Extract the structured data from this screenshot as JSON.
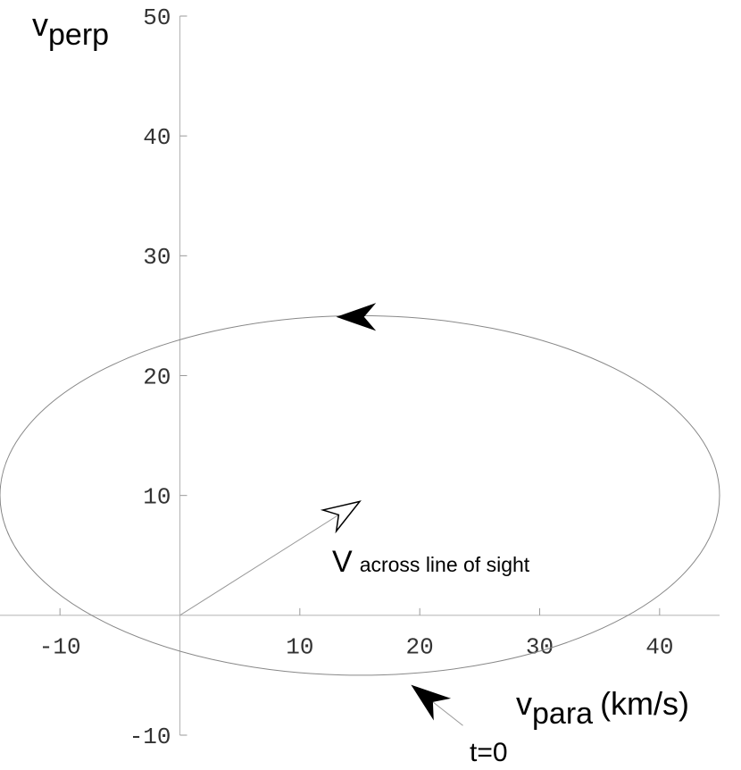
{
  "chart_data": {
    "type": "parametric",
    "xlim": [
      -15,
      45
    ],
    "ylim": [
      -10,
      50
    ],
    "xticks": [
      -10,
      10,
      20,
      30,
      40
    ],
    "yticks": [
      -10,
      10,
      20,
      30,
      40,
      50
    ],
    "xlabel": {
      "main": "v",
      "sub": "para",
      "unit": "(km/s)"
    },
    "ylabel": {
      "main": "v",
      "sub": "perp"
    },
    "ellipse": {
      "center": [
        15,
        10
      ],
      "rx": 30,
      "ry": 15,
      "color": "#888888"
    },
    "direction_marker": [
      13.2,
      24.9
    ],
    "arrows": [
      {
        "from": [
          0,
          0
        ],
        "to": [
          15,
          9.5
        ],
        "label": {
          "main": "V",
          "rest": "across line of sight"
        },
        "hollow": true
      },
      {
        "from": [
          23.6,
          -9.2
        ],
        "to": [
          19.4,
          -5.9
        ],
        "label": {
          "main": "t=0"
        },
        "hollow": false
      }
    ]
  }
}
